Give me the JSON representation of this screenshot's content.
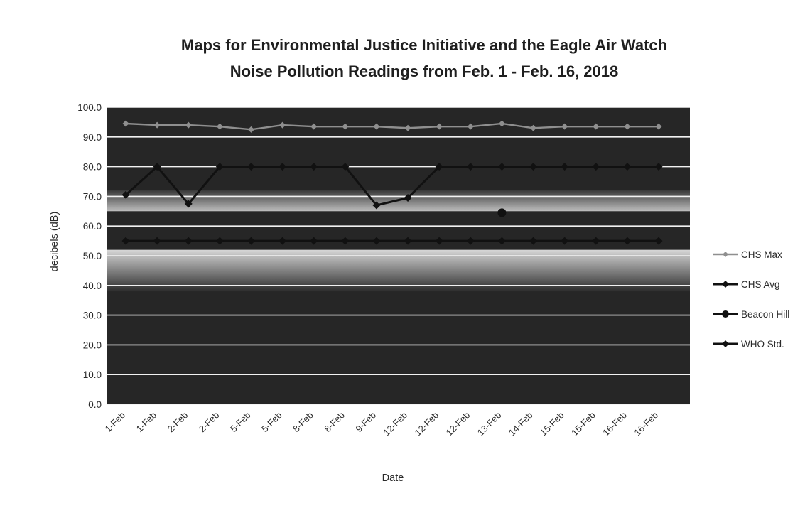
{
  "chart_data": {
    "type": "line",
    "title": [
      "Maps for Environmental Justice Initiative and the Eagle Air Watch",
      "Noise Pollution Readings from Feb. 1 - Feb. 16, 2018"
    ],
    "xlabel": "Date",
    "ylabel": "decibels (dB)",
    "ylim": [
      0,
      100
    ],
    "yticks": [
      "0.0",
      "10.0",
      "20.0",
      "30.0",
      "40.0",
      "50.0",
      "60.0",
      "70.0",
      "80.0",
      "90.0",
      "100.0"
    ],
    "grid": true,
    "legend_position": "right",
    "categories": [
      "1-Feb",
      "1-Feb",
      "2-Feb",
      "2-Feb",
      "5-Feb",
      "5-Feb",
      "8-Feb",
      "8-Feb",
      "9-Feb",
      "12-Feb",
      "12-Feb",
      "12-Feb",
      "13-Feb",
      "14-Feb",
      "15-Feb",
      "15-Feb",
      "16-Feb",
      "16-Feb"
    ],
    "series": [
      {
        "name": "CHS Max",
        "color": "#8f8f8f",
        "marker": "diamond",
        "values": [
          94.5,
          94.0,
          94.0,
          93.5,
          92.5,
          94.0,
          93.5,
          93.5,
          93.5,
          93.0,
          93.5,
          93.5,
          94.5,
          93.0,
          93.5,
          93.5,
          93.5,
          93.5
        ]
      },
      {
        "name": "CHS Avg",
        "color": "#111111",
        "marker": "diamond",
        "values": [
          70.5,
          80.0,
          67.5,
          80.0,
          80.0,
          80.0,
          80.0,
          80.0,
          67.0,
          69.5,
          80.0,
          80.0,
          80.0,
          80.0,
          80.0,
          80.0,
          80.0,
          80.0
        ]
      },
      {
        "name": "Beacon Hill",
        "color": "#111111",
        "marker": "circle",
        "values": [
          null,
          null,
          null,
          null,
          null,
          null,
          null,
          null,
          null,
          null,
          null,
          null,
          64.5,
          null,
          null,
          null,
          null,
          null
        ]
      },
      {
        "name": "WHO Std.",
        "color": "#111111",
        "marker": "diamond",
        "values": [
          55,
          55,
          55,
          55,
          55,
          55,
          55,
          55,
          55,
          55,
          55,
          55,
          55,
          55,
          55,
          55,
          55,
          55
        ]
      }
    ]
  }
}
